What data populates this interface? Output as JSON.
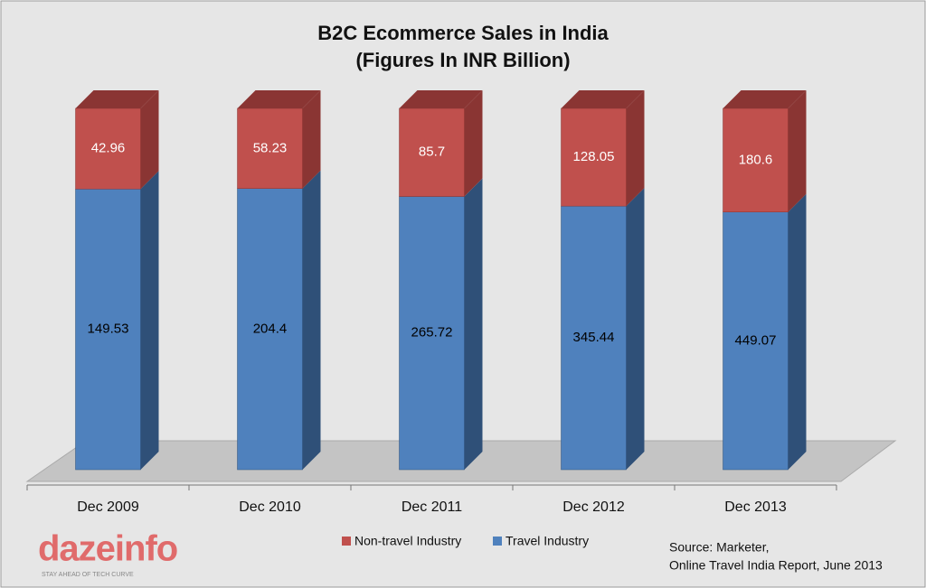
{
  "chart_data": {
    "type": "bar",
    "stacking": "percent",
    "three_d": true,
    "title": [
      "B2C Ecommerce Sales in India",
      "(Figures In INR Billion)"
    ],
    "categories": [
      "Dec 2009",
      "Dec 2010",
      "Dec 2011",
      "Dec 2012",
      "Dec 2013"
    ],
    "series": [
      {
        "name": "Travel Industry",
        "color": "#4f81bd",
        "side_color": "#2f5078",
        "label_color": "#000000",
        "values": [
          149.53,
          204.4,
          265.72,
          345.44,
          449.07
        ]
      },
      {
        "name": "Non-travel Industry",
        "color": "#c0504d",
        "side_color": "#8a3533",
        "label_color": "#ffffff",
        "values": [
          42.96,
          58.23,
          85.7,
          128.05,
          180.6
        ]
      }
    ],
    "legend": "bottom",
    "source": [
      "Source: Marketer,",
      "Online Travel India Report, June 2013"
    ],
    "logo": {
      "text": "dazeinfo",
      "tagline": "STAY AHEAD OF TECH CURVE"
    }
  }
}
